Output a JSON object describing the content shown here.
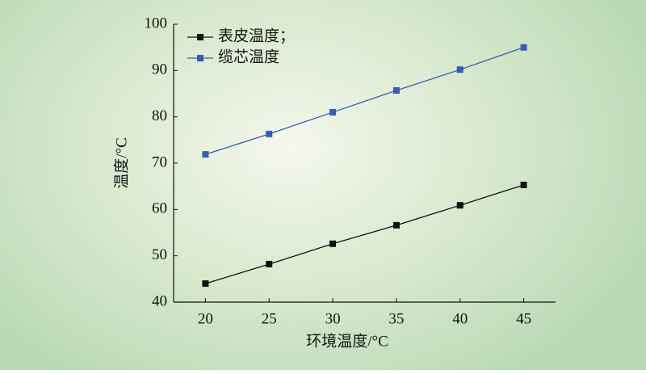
{
  "chart_data": {
    "type": "line",
    "x_label": "环境温度/°C",
    "y_label": "温度/°C",
    "x": [
      20,
      25,
      30,
      35,
      40,
      45
    ],
    "series": [
      {
        "name": "表皮温度；",
        "color": "#111111",
        "values": [
          44.0,
          48.2,
          52.6,
          56.6,
          60.9,
          65.3
        ]
      },
      {
        "name": "缆芯温度",
        "color": "#3a5bb5",
        "values": [
          71.9,
          76.3,
          81.0,
          85.7,
          90.2,
          95.0
        ]
      }
    ],
    "xlim": [
      17.5,
      47.5
    ],
    "ylim": [
      40,
      100
    ],
    "xticks": [
      20,
      25,
      30,
      35,
      40,
      45
    ],
    "yticks": [
      40,
      50,
      60,
      70,
      80,
      90,
      100
    ],
    "legend": "upper left"
  }
}
